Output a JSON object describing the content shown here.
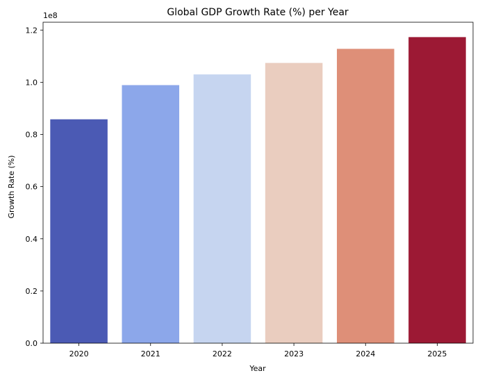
{
  "chart_data": {
    "type": "bar",
    "title": "Global GDP Growth Rate (%) per Year",
    "xlabel": "Year",
    "ylabel": "Growth Rate (%)",
    "categories": [
      "2020",
      "2021",
      "2022",
      "2023",
      "2024",
      "2025"
    ],
    "values": [
      85800000,
      98900000,
      103000000,
      107400000,
      112800000,
      117300000
    ],
    "ylim": [
      0,
      123000000
    ],
    "y_ticks": [
      0,
      20000000,
      40000000,
      60000000,
      80000000,
      100000000,
      120000000
    ],
    "y_tick_labels": [
      "0.0",
      "0.2",
      "0.4",
      "0.6",
      "0.8",
      "1.0",
      "1.2"
    ],
    "y_offset_label": "1e8",
    "grid": false,
    "legend": "none",
    "colors": [
      "#4b5ab4",
      "#8ca7ea",
      "#c6d5f0",
      "#eacdbf",
      "#de8f78",
      "#9c1934"
    ]
  }
}
